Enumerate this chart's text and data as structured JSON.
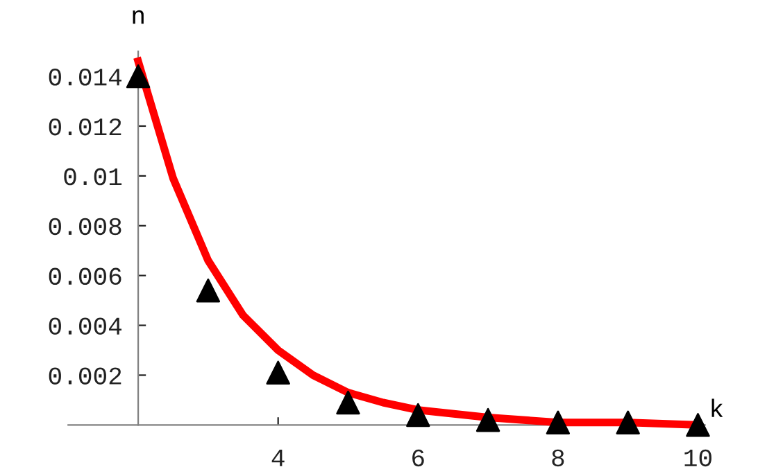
{
  "chart_data": {
    "type": "scatter",
    "xlabel": "k",
    "ylabel": "n",
    "xlim": [
      1,
      10.1
    ],
    "ylim": [
      0,
      0.015
    ],
    "xticks": [
      4,
      6,
      8,
      10
    ],
    "yticks": [
      0.002,
      0.004,
      0.006,
      0.008,
      {
        "value": 0.01,
        "label": "0.01"
      },
      0.012,
      0.014
    ],
    "grid": false,
    "series": [
      {
        "color": "#000000",
        "marker": "triangle",
        "x": [
          2,
          3,
          4,
          5,
          6,
          7,
          8,
          9,
          10
        ],
        "values": [
          0.014,
          0.0054,
          0.0021,
          0.0009,
          0.0004,
          0.0002,
          0.0001,
          0.0001,
          0.0
        ]
      },
      {
        "type": "line",
        "color": "#ff0000",
        "marker": "none",
        "line_style": "solid",
        "x": [
          2,
          2.5,
          3,
          3.5,
          4,
          4.5,
          5,
          5.5,
          6,
          7,
          8,
          9,
          10
        ],
        "values": [
          0.0146,
          0.0099,
          0.0066,
          0.0044,
          0.003,
          0.002,
          0.0013,
          0.0009,
          0.0006,
          0.0003,
          0.0001,
          0.0001,
          0.0
        ]
      }
    ]
  }
}
